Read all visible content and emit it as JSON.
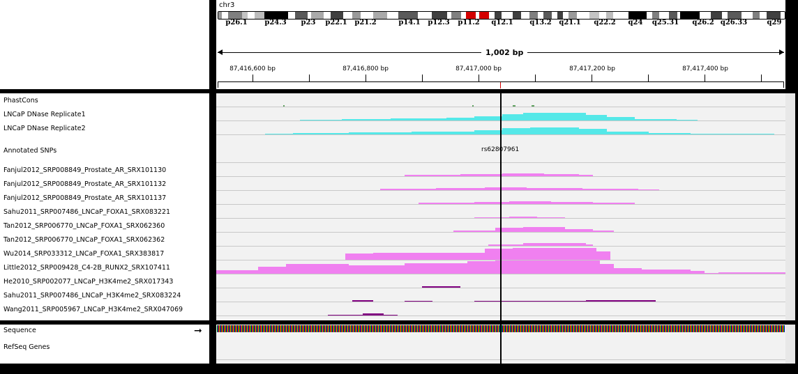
{
  "header": {
    "chromosome": "chr3",
    "span_label": "1,002 bp"
  },
  "ideogram": {
    "bands": [
      "p26.1",
      "p24.3",
      "p23",
      "p22.1",
      "p21.2",
      "p14.1",
      "p12.3",
      "p11.2",
      "q12.1",
      "q13.2",
      "q21.1",
      "q22.2",
      "q24",
      "q25.31",
      "q26.2",
      "q26.33",
      "q29"
    ]
  },
  "ruler": {
    "ticks": [
      "87,416,600 bp",
      "87,416,800 bp",
      "87,417,000 bp",
      "87,417,200 bp",
      "87,417,400 bp"
    ]
  },
  "tracks": [
    {
      "name": "PhastCons",
      "type": "phastcons",
      "color": "#5fa05f"
    },
    {
      "name": "LNCaP DNase Replicate1",
      "type": "signal",
      "color": "#55e8e8"
    },
    {
      "name": "LNCaP DNase Replicate2",
      "type": "signal",
      "color": "#55e8e8"
    },
    {
      "name": "Annotated SNPs",
      "type": "snp",
      "snp_id": "rs62807961"
    },
    {
      "name": "Fanjul2012_SRP008849_Prostate_AR_SRX101130",
      "type": "signal",
      "color": "#f080f0"
    },
    {
      "name": "Fanjul2012_SRP008849_Prostate_AR_SRX101132",
      "type": "signal",
      "color": "#f080f0"
    },
    {
      "name": "Fanjul2012_SRP008849_Prostate_AR_SRX101137",
      "type": "signal",
      "color": "#f080f0"
    },
    {
      "name": "Sahu2011_SRP007486_LNCaP_FOXA1_SRX083221",
      "type": "signal",
      "color": "#f080f0"
    },
    {
      "name": "Tan2012_SRP006770_LNCaP_FOXA1_SRX062360",
      "type": "signal",
      "color": "#f080f0"
    },
    {
      "name": "Tan2012_SRP006770_LNCaP_FOXA1_SRX062362",
      "type": "signal",
      "color": "#f080f0"
    },
    {
      "name": "Wu2014_SRP033312_LNCaP_FOXA1_SRX383817",
      "type": "signal",
      "color": "#f080f0"
    },
    {
      "name": "Little2012_SRP009428_C4-2B_RUNX2_SRX107411",
      "type": "signal",
      "color": "#f080f0"
    },
    {
      "name": "He2010_SRP002077_LNCaP_H3K4me2_SRX017343",
      "type": "signal",
      "color": "#800080"
    },
    {
      "name": "Sahu2011_SRP007486_LNCaP_H3K4me2_SRX083224",
      "type": "signal",
      "color": "#800080"
    },
    {
      "name": "Wang2011_SRP005967_LNCaP_H3K4me2_SRX047069",
      "type": "signal",
      "color": "#800080"
    }
  ],
  "bottom_tracks": {
    "sequence": "Sequence",
    "refseq": "RefSeq Genes"
  },
  "colors": {
    "cyan": "#55e8e8",
    "pink": "#f080f0",
    "purple": "#800080",
    "centromere": "#d40000"
  }
}
